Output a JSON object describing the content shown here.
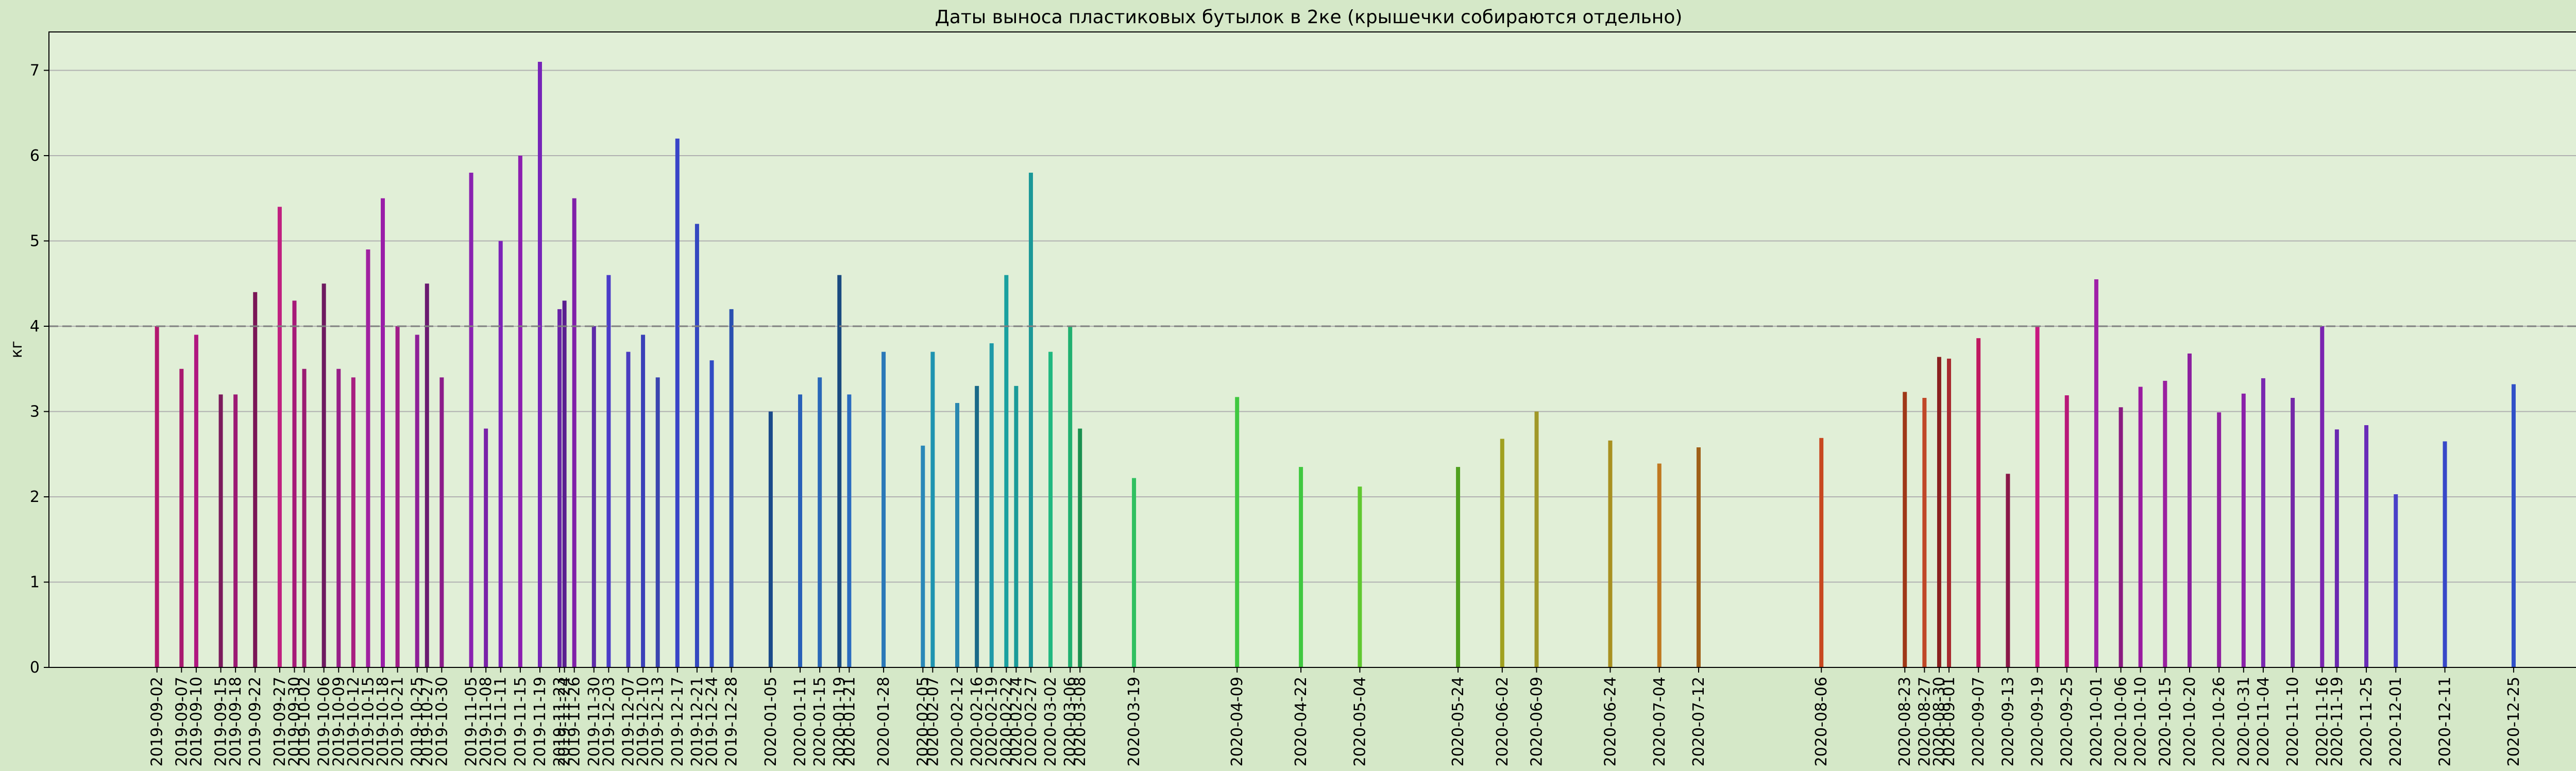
{
  "chart_data": {
    "type": "bar",
    "title": "Даты выноса пластиковых бутылок в 2ке (крышечки собираются отдельно)",
    "xlabel": "",
    "ylabel": "кг",
    "ylim": [
      0,
      7.45
    ],
    "yticks": [
      "0",
      "1",
      "2",
      "3",
      "4",
      "5",
      "6",
      "7"
    ],
    "xlim": [
      "2019-08-11",
      "2021-01-13"
    ],
    "grid": "horizontal",
    "reference_line": 4,
    "background_color": "#e1efd7",
    "figure_color": "#d5e8c8",
    "reference_line_color": "#808080",
    "bars": [
      {
        "date": "2019-09-02",
        "value": 4.0,
        "color": "#b2186f"
      },
      {
        "date": "2019-09-07",
        "value": 3.5,
        "color": "#a8196f"
      },
      {
        "date": "2019-09-10",
        "value": 3.9,
        "color": "#b01880"
      },
      {
        "date": "2019-09-15",
        "value": 3.2,
        "color": "#7b1a5c"
      },
      {
        "date": "2019-09-18",
        "value": 3.2,
        "color": "#9c1a74"
      },
      {
        "date": "2019-09-22",
        "value": 4.4,
        "color": "#7a1656"
      },
      {
        "date": "2019-09-27",
        "value": 5.4,
        "color": "#c02080"
      },
      {
        "date": "2019-09-30",
        "value": 4.3,
        "color": "#a61a78"
      },
      {
        "date": "2019-10-02",
        "value": 3.5,
        "color": "#9a1c72"
      },
      {
        "date": "2019-10-06",
        "value": 4.5,
        "color": "#6e1a60"
      },
      {
        "date": "2019-10-09",
        "value": 3.5,
        "color": "#981e88"
      },
      {
        "date": "2019-10-12",
        "value": 3.4,
        "color": "#a81e80"
      },
      {
        "date": "2019-10-15",
        "value": 4.9,
        "color": "#a020a0"
      },
      {
        "date": "2019-10-18",
        "value": 5.5,
        "color": "#9a1ea8"
      },
      {
        "date": "2019-10-21",
        "value": 4.0,
        "color": "#a01c88"
      },
      {
        "date": "2019-10-25",
        "value": 3.9,
        "color": "#8e2098"
      },
      {
        "date": "2019-10-27",
        "value": 4.5,
        "color": "#6a1a70"
      },
      {
        "date": "2019-10-30",
        "value": 3.4,
        "color": "#8c1c8a"
      },
      {
        "date": "2019-11-05",
        "value": 5.8,
        "color": "#8a22b0"
      },
      {
        "date": "2019-11-08",
        "value": 2.8,
        "color": "#7a22a8"
      },
      {
        "date": "2019-11-11",
        "value": 5.0,
        "color": "#7c22b8"
      },
      {
        "date": "2019-11-15",
        "value": 6.0,
        "color": "#8c1eb0"
      },
      {
        "date": "2019-11-19",
        "value": 7.1,
        "color": "#7624b8"
      },
      {
        "date": "2019-11-23",
        "value": 4.2,
        "color": "#6822a8"
      },
      {
        "date": "2019-11-24",
        "value": 4.3,
        "color": "#5a1e90"
      },
      {
        "date": "2019-11-26",
        "value": 5.5,
        "color": "#8020a8"
      },
      {
        "date": "2019-11-30",
        "value": 4.0,
        "color": "#5e2aa8"
      },
      {
        "date": "2019-12-03",
        "value": 4.6,
        "color": "#4a3cc8"
      },
      {
        "date": "2019-12-07",
        "value": 3.7,
        "color": "#4a3cc0"
      },
      {
        "date": "2019-12-10",
        "value": 3.9,
        "color": "#3a40b8"
      },
      {
        "date": "2019-12-13",
        "value": 3.4,
        "color": "#3a44b0"
      },
      {
        "date": "2019-12-17",
        "value": 6.2,
        "color": "#3844c8"
      },
      {
        "date": "2019-12-21",
        "value": 5.2,
        "color": "#3448c0"
      },
      {
        "date": "2019-12-24",
        "value": 3.6,
        "color": "#304cc4"
      },
      {
        "date": "2019-12-28",
        "value": 4.2,
        "color": "#2a50b0"
      },
      {
        "date": "2020-01-05",
        "value": 3.0,
        "color": "#1a4a8a"
      },
      {
        "date": "2020-01-11",
        "value": 3.2,
        "color": "#2860b8"
      },
      {
        "date": "2020-01-15",
        "value": 3.4,
        "color": "#2a68b8"
      },
      {
        "date": "2020-01-19",
        "value": 4.6,
        "color": "#1a4a80"
      },
      {
        "date": "2020-01-21",
        "value": 3.2,
        "color": "#2a6cc0"
      },
      {
        "date": "2020-01-28",
        "value": 3.7,
        "color": "#2a78b8"
      },
      {
        "date": "2020-02-05",
        "value": 2.6,
        "color": "#2a88b8"
      },
      {
        "date": "2020-02-07",
        "value": 3.7,
        "color": "#1e94b0"
      },
      {
        "date": "2020-02-12",
        "value": 3.1,
        "color": "#2a88b0"
      },
      {
        "date": "2020-02-16",
        "value": 3.3,
        "color": "#1a6a88"
      },
      {
        "date": "2020-02-19",
        "value": 3.8,
        "color": "#1e9aa8"
      },
      {
        "date": "2020-02-22",
        "value": 4.6,
        "color": "#1aa0a0"
      },
      {
        "date": "2020-02-24",
        "value": 3.3,
        "color": "#1a9a98"
      },
      {
        "date": "2020-02-27",
        "value": 5.8,
        "color": "#1a9898"
      },
      {
        "date": "2020-03-02",
        "value": 3.7,
        "color": "#20b880"
      },
      {
        "date": "2020-03-06",
        "value": 4.0,
        "color": "#20b070"
      },
      {
        "date": "2020-03-08",
        "value": 2.8,
        "color": "#1a9050"
      },
      {
        "date": "2020-03-19",
        "value": 2.22,
        "color": "#30c060"
      },
      {
        "date": "2020-04-09",
        "value": 3.17,
        "color": "#40c840"
      },
      {
        "date": "2020-04-22",
        "value": 2.35,
        "color": "#40c840"
      },
      {
        "date": "2020-05-04",
        "value": 2.12,
        "color": "#60c830"
      },
      {
        "date": "2020-05-24",
        "value": 2.35,
        "color": "#50a020"
      },
      {
        "date": "2020-06-02",
        "value": 2.68,
        "color": "#a0a020"
      },
      {
        "date": "2020-06-09",
        "value": 3.0,
        "color": "#a09828"
      },
      {
        "date": "2020-06-24",
        "value": 2.66,
        "color": "#a89020"
      },
      {
        "date": "2020-07-04",
        "value": 2.39,
        "color": "#c07820"
      },
      {
        "date": "2020-07-12",
        "value": 2.58,
        "color": "#a06018"
      },
      {
        "date": "2020-08-06",
        "value": 2.69,
        "color": "#c84820"
      },
      {
        "date": "2020-08-23",
        "value": 3.23,
        "color": "#a03818"
      },
      {
        "date": "2020-08-27",
        "value": 3.16,
        "color": "#c04828"
      },
      {
        "date": "2020-08-30",
        "value": 3.64,
        "color": "#8a2020"
      },
      {
        "date": "2020-09-01",
        "value": 3.62,
        "color": "#a82a30"
      },
      {
        "date": "2020-09-07",
        "value": 3.86,
        "color": "#c01860"
      },
      {
        "date": "2020-09-13",
        "value": 2.27,
        "color": "#8a1848"
      },
      {
        "date": "2020-09-19",
        "value": 4.0,
        "color": "#c81880"
      },
      {
        "date": "2020-09-25",
        "value": 3.19,
        "color": "#b81878"
      },
      {
        "date": "2020-10-01",
        "value": 4.55,
        "color": "#a020a8"
      },
      {
        "date": "2020-10-06",
        "value": 3.05,
        "color": "#8a1a80"
      },
      {
        "date": "2020-10-10",
        "value": 3.29,
        "color": "#9a1aa0"
      },
      {
        "date": "2020-10-15",
        "value": 3.36,
        "color": "#9a20a0"
      },
      {
        "date": "2020-10-20",
        "value": 3.68,
        "color": "#8c20a0"
      },
      {
        "date": "2020-10-26",
        "value": 2.99,
        "color": "#9020a0"
      },
      {
        "date": "2020-10-31",
        "value": 3.21,
        "color": "#8a20a8"
      },
      {
        "date": "2020-11-04",
        "value": 3.39,
        "color": "#7a28b0"
      },
      {
        "date": "2020-11-10",
        "value": 3.16,
        "color": "#7428a8"
      },
      {
        "date": "2020-11-16",
        "value": 4.0,
        "color": "#7a24b0"
      },
      {
        "date": "2020-11-19",
        "value": 2.79,
        "color": "#6a28b0"
      },
      {
        "date": "2020-11-25",
        "value": 2.84,
        "color": "#6a2cb8"
      },
      {
        "date": "2020-12-01",
        "value": 2.03,
        "color": "#4a40c8"
      },
      {
        "date": "2020-12-11",
        "value": 2.65,
        "color": "#3848c8"
      },
      {
        "date": "2020-12-25",
        "value": 3.32,
        "color": "#3050c8"
      }
    ]
  }
}
